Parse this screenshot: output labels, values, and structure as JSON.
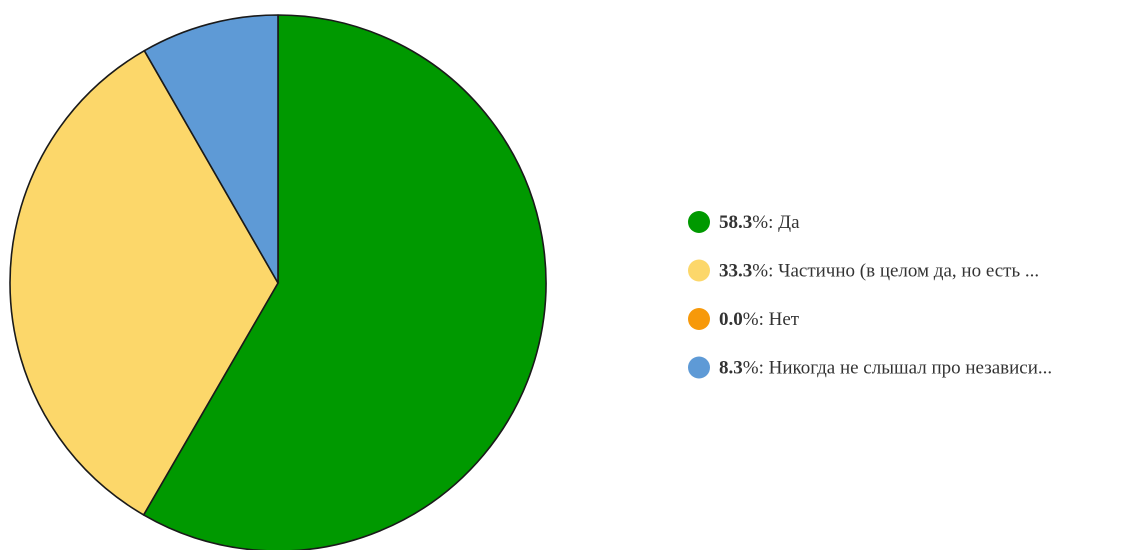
{
  "chart_data": {
    "type": "pie",
    "slices": [
      {
        "label": "Да",
        "legend_text": "Да",
        "value": 58.3,
        "value_text": "58.3",
        "color": "#009900"
      },
      {
        "label": "Частично (в целом да, но есть ...",
        "legend_text": "Частично (в целом да, но есть ...",
        "value": 33.3,
        "value_text": "33.3",
        "color": "#fcd76a"
      },
      {
        "label": "Нет",
        "legend_text": "Нет",
        "value": 0.0,
        "value_text": "0.0",
        "color": "#f7990a"
      },
      {
        "label": "Никогда не слышал про независи...",
        "legend_text": "Никогда не слышал про независи...",
        "value": 8.3,
        "value_text": "8.3",
        "color": "#5e9ad6"
      }
    ],
    "percent_suffix": "%: ",
    "legend_position": "right",
    "start_angle": "top",
    "direction": "clockwise"
  }
}
